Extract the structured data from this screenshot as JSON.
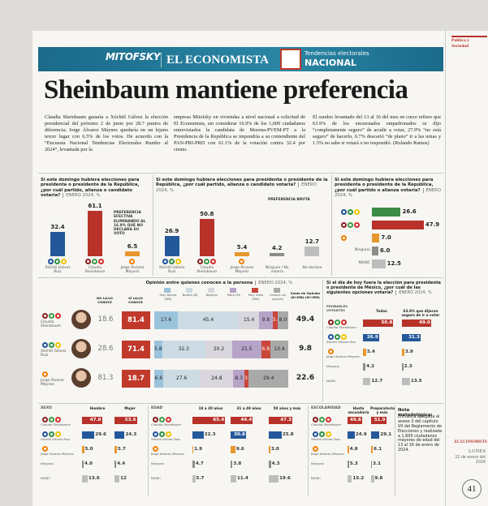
{
  "section": "Política y Sociedad",
  "banner": {
    "brand": "MITOFSKY",
    "newspaper": "EL ECONOMISTA",
    "label": "Tendencias electorales",
    "label_strong": "NACIONAL"
  },
  "headline": "Sheinbaum mantiene preferencia",
  "article": [
    "Claudia Sheinbaum ganaría a Xóchitl Gálvez la elección presidencial del próximo 2 de junio por 28.7 puntos de diferencia; Jorge Álvarez Máynez quedaría en un lejano tercer lugar con 6.5% de los votos. De acuerdo con la “Encuesta Nacional Tendencias Electorales Rumbo al 2024”, levantada por la",
    "empresa Mitofsky en viviendas a nivel nacional a solicitud de El Economista, sin considerar 16.9% de los 1,600 ciudadanos entrevistados la candidata de Morena-PVEM-PT a la Presidencia de la República se impondría a su contendiente del PAN-PRI-PRD con 61.1% de la votación contra 32.4 por ciento.",
    "El sondeo levantado del 13 al 16 del mes en curso refiere que 63.9% de los encuestados empadronados se dijo “completamente seguro” de acudir a votar, 27.9% “no está seguro” de hacerlo, 6.7% descartó “de plano” ir a las urnas y 1.5% no sabe si votará o no respondió. (Rolando Ramos)"
  ],
  "effective": {
    "title": "Si este domingo hubiera elecciones para presidenta o presidente de la República, ¿por cuál partido, alianza o candidato votaría?",
    "period": "ENERO 2024, %",
    "note": "PREFERENCIA EFECTIVA ELIMINANDO AL 16.9% QUE NO DECLARA SU VOTO",
    "categories": [
      "Xóchitl Gálvez Ruiz",
      "Claudia Sheinbaum",
      "Jorge Álvarez Máynez"
    ],
    "values": [
      32.4,
      61.1,
      6.5
    ],
    "value_labels": [
      "32.4",
      "61.1",
      "6.5"
    ],
    "colors": [
      "#24589a",
      "#b8322a",
      "#e8962e"
    ],
    "ylim": [
      0,
      70
    ]
  },
  "gross": {
    "title": "Si este domingo hubiera elecciones para presidenta o presidente de la República, ¿por cuál partido, alianza o candidato votaría?",
    "period": "ENERO 2024, %",
    "note": "PREFERENCIA BRUTA",
    "categories": [
      "Xóchitl Gálvez Ruiz",
      "Claudia Sheinbaum",
      "Jorge Álvarez Máynez",
      "Ninguno / No votaría",
      "No declara"
    ],
    "values": [
      26.9,
      50.8,
      5.4,
      4.2,
      12.7
    ],
    "value_labels": [
      "26.9",
      "50.8",
      "5.4",
      "4.2",
      "12.7"
    ],
    "colors": [
      "#24589a",
      "#b8322a",
      "#e8962e",
      "#8c8c8c",
      "#bdbdbd"
    ],
    "ylim": [
      0,
      70
    ]
  },
  "party": {
    "title": "Si este domingo hubiera elecciones para presidenta o presidente de la República, ¿por cuál partido o alianza votaría?",
    "period": "ENERO 2024, %",
    "categories": [
      null,
      null,
      null,
      "Ninguno",
      "NS/NC"
    ],
    "values": [
      26.6,
      47.9,
      7.0,
      6.0,
      12.5
    ],
    "value_labels": [
      "26.6",
      "47.9",
      "7.0",
      "6.0",
      "12.5"
    ],
    "colors": [
      "#3c8c47",
      "#b8322a",
      "#e8962e",
      "#8c8c8c",
      "#bdbdbd"
    ],
    "xlim": [
      0,
      60
    ]
  },
  "opinion": {
    "title": "Opinión entre quienes conocen a la persona",
    "period": "ENERO 2024, %",
    "no_header": "NO LA/LO CONOCE",
    "si_header": "SÍ LA/LO CONOCE",
    "saldo_header": "Saldo de Opinión (B+MB)-(M+MM)",
    "segments": [
      {
        "name": "Muy buena (MB)",
        "color": "#9cc3dc"
      },
      {
        "name": "Buena (B)",
        "color": "#cddbe4"
      },
      {
        "name": "Regular",
        "color": "#d9d6de"
      },
      {
        "name": "Mala (M)",
        "color": "#b7a3c8"
      },
      {
        "name": "Muy mala (MM)",
        "color": "#c9463b"
      },
      {
        "name": "Conoce sin opinión",
        "color": "#a9a9a9"
      }
    ],
    "rows": [
      {
        "name": "Claudia Sheinbaum",
        "no": 18.6,
        "si": 81.4,
        "values": [
          17.6,
          45.4,
          15.4,
          9.8,
          3.8,
          8.0
        ],
        "value_labels": [
          "17.6",
          "45.4",
          "15.4",
          "9.8",
          "3.8",
          "8.0"
        ],
        "saldo": 49.4
      },
      {
        "name": "Xóchitl Gálvez Ruiz",
        "no": 28.6,
        "si": 71.4,
        "values": [
          5.8,
          32.3,
          20.2,
          21.5,
          6.8,
          13.4
        ],
        "value_labels": [
          "5.8",
          "32.3",
          "20.2",
          "21.5",
          "6.8",
          "13.4"
        ],
        "saldo": 9.8
      },
      {
        "name": "Jorge Álvarez Máynez",
        "no": 81.3,
        "si": 18.7,
        "values": [
          6.6,
          27.6,
          24.8,
          8.3,
          3.3,
          29.4
        ],
        "value_labels": [
          "6.6",
          "27.6",
          "24.8",
          "8.3",
          "3.3",
          "29.4"
        ],
        "saldo": 22.6
      }
    ],
    "xlim": [
      0,
      100
    ]
  },
  "voters": {
    "title": "Si el día de hoy fuera la elección para presidenta o presidente de México, ¿por cuál de las siguientes opciones votaría?",
    "period": "ENERO 2024, %",
    "group_label": "PROBABLES VOTANTES",
    "categories": [
      "Claudia Sheinbaum",
      "Xóchitl Gálvez Ruiz",
      "Jorge Álvarez Máynez",
      "Ninguno",
      "NS/NC"
    ],
    "colors": [
      "#b8322a",
      "#24589a",
      "#e8962e",
      "#8c8c8c",
      "#bdbdbd"
    ],
    "series": [
      {
        "name": "Todos",
        "values": [
          50.8,
          26.9,
          5.4,
          4.2,
          12.7
        ],
        "value_labels": [
          "50.8",
          "26.9",
          "5.4",
          "4.2",
          "12.7"
        ]
      },
      {
        "name": "63.9% que dijeron seguro de ir a votar",
        "values": [
          49.0,
          31.3,
          3.9,
          2.3,
          13.5
        ],
        "value_labels": [
          "49.0",
          "31.3",
          "3.9",
          "2.3",
          "13.5"
        ]
      }
    ],
    "xlim": [
      0,
      60
    ]
  },
  "segments": [
    {
      "label": "SEXO",
      "categories": [
        "Claudia Sheinbaum",
        "Xóchitl Gálvez Ruiz",
        "Jorge Álvarez Máynez",
        "Ninguno",
        "NS/NC"
      ],
      "colors": [
        "#b8322a",
        "#24589a",
        "#e8962e",
        "#8c8c8c",
        "#bdbdbd"
      ],
      "series": [
        {
          "name": "Hombre",
          "values": [
            47.8,
            29.6,
            5.0,
            4.0,
            13.6
          ],
          "value_labels": [
            "47.8",
            "29.6",
            "5.0",
            "4.0",
            "13.6"
          ]
        },
        {
          "name": "Mujer",
          "values": [
            53.6,
            24.3,
            5.7,
            4.4,
            12
          ],
          "value_labels": [
            "53.6",
            "24.3",
            "5.7",
            "4.4",
            "12"
          ]
        }
      ],
      "xlim": [
        0,
        70
      ]
    },
    {
      "label": "EDAD",
      "categories": [
        "Claudia Sheinbaum",
        "Xóchitl Gálvez Ruiz",
        "Jorge Álvarez Máynez",
        "Ninguno",
        "NS/NC"
      ],
      "colors": [
        "#b8322a",
        "#24589a",
        "#e8962e",
        "#8c8c8c",
        "#bdbdbd"
      ],
      "series": [
        {
          "name": "18 a 30 años",
          "values": [
            65.4,
            22.3,
            1.9,
            4.7,
            5.7
          ],
          "value_labels": [
            "65.4",
            "22.3",
            "1.9",
            "4.7",
            "5.7"
          ]
        },
        {
          "name": "31 a 49 años",
          "values": [
            44.4,
            30.8,
            9.6,
            3.8,
            11.4
          ],
          "value_labels": [
            "44.4",
            "30.8",
            "9.6",
            "3.8",
            "11.4"
          ]
        },
        {
          "name": "50 años y más",
          "values": [
            47.3,
            25.8,
            3.0,
            4.3,
            19.6
          ],
          "value_labels": [
            "47.3",
            "25.8",
            "3.0",
            "4.3",
            "19.6"
          ]
        }
      ],
      "xlim": [
        0,
        70
      ]
    },
    {
      "label": "ESCOLARIDAD",
      "categories": [
        "Claudia Sheinbaum",
        "Xóchitl Gálvez Ruiz",
        "Jorge Álvarez Máynez",
        "Ninguno",
        "NS/NC"
      ],
      "colors": [
        "#b8322a",
        "#24589a",
        "#e8962e",
        "#8c8c8c",
        "#bdbdbd"
      ],
      "series": [
        {
          "name": "Hasta secundaria",
          "values": [
            49.8,
            24.9,
            4.8,
            5.3,
            15.2
          ],
          "value_labels": [
            "49.8",
            "24.9",
            "4.8",
            "5.3",
            "15.2"
          ]
        },
        {
          "name": "Preparatoria y más",
          "values": [
            51.9,
            29.1,
            6.1,
            3.1,
            9.8
          ],
          "value_labels": [
            "51.9",
            "29.1",
            "6.1",
            "3.1",
            "9.8"
          ]
        }
      ],
      "xlim": [
        0,
        70
      ]
    }
  ],
  "methodology": {
    "title": "Nota metodológica:",
    "text": "Encuesta apegada al anexo 3 del capítulo VII del Reglamento de Elecciones y realizada a 1,600 ciudadanos mayores de edad del 13 al 16 de enero de 2024."
  },
  "footer": {
    "newspaper": "EL ECONOMISTA",
    "day": "LUNES",
    "date": "22 de enero del 2024",
    "page": "41"
  }
}
